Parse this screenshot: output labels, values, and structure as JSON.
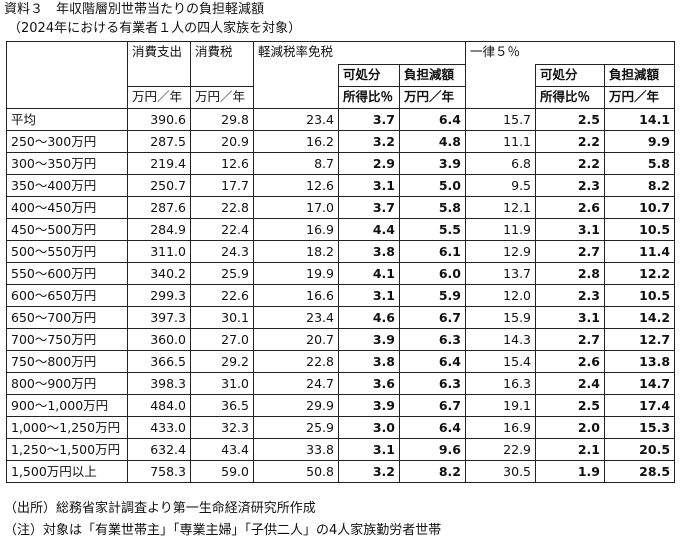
{
  "title": "資料３　年収階層別世帯当たりの負担軽減額",
  "subtitle": "（2024年における有業者１人の四人家族を対象）",
  "headers": {
    "consumption": "消費支出",
    "consumption_tax": "消費税",
    "reduced_group": "軽減税率免税",
    "flat_group": "一律５％",
    "disposable": "可処分",
    "disposable_ratio": "所得比％",
    "burden": "負担減額",
    "burden_unit": "万円／年",
    "unit_man_yen": "万円／年",
    "unit_man_yen2": "万円／年"
  },
  "rows": [
    {
      "label": "平均",
      "c1": "390.6",
      "c2": "29.8",
      "c3": "23.4",
      "c4": "3.7",
      "c5": "6.4",
      "c6": "15.7",
      "c7": "2.5",
      "c8": "14.1"
    },
    {
      "label": "250～300万円",
      "c1": "287.5",
      "c2": "20.9",
      "c3": "16.2",
      "c4": "3.2",
      "c5": "4.8",
      "c6": "11.1",
      "c7": "2.2",
      "c8": "9.9"
    },
    {
      "label": "300～350万円",
      "c1": "219.4",
      "c2": "12.6",
      "c3": "8.7",
      "c4": "2.9",
      "c5": "3.9",
      "c6": "6.8",
      "c7": "2.2",
      "c8": "5.8"
    },
    {
      "label": "350～400万円",
      "c1": "250.7",
      "c2": "17.7",
      "c3": "12.6",
      "c4": "3.1",
      "c5": "5.0",
      "c6": "9.5",
      "c7": "2.3",
      "c8": "8.2"
    },
    {
      "label": "400～450万円",
      "c1": "287.6",
      "c2": "22.8",
      "c3": "17.0",
      "c4": "3.7",
      "c5": "5.8",
      "c6": "12.1",
      "c7": "2.6",
      "c8": "10.7"
    },
    {
      "label": "450～500万円",
      "c1": "284.9",
      "c2": "22.4",
      "c3": "16.9",
      "c4": "4.4",
      "c5": "5.5",
      "c6": "11.9",
      "c7": "3.1",
      "c8": "10.5"
    },
    {
      "label": "500～550万円",
      "c1": "311.0",
      "c2": "24.3",
      "c3": "18.2",
      "c4": "3.8",
      "c5": "6.1",
      "c6": "12.9",
      "c7": "2.7",
      "c8": "11.4"
    },
    {
      "label": "550～600万円",
      "c1": "340.2",
      "c2": "25.9",
      "c3": "19.9",
      "c4": "4.1",
      "c5": "6.0",
      "c6": "13.7",
      "c7": "2.8",
      "c8": "12.2"
    },
    {
      "label": "600～650万円",
      "c1": "299.3",
      "c2": "22.6",
      "c3": "16.6",
      "c4": "3.1",
      "c5": "5.9",
      "c6": "12.0",
      "c7": "2.3",
      "c8": "10.5"
    },
    {
      "label": "650～700万円",
      "c1": "397.3",
      "c2": "30.1",
      "c3": "23.4",
      "c4": "4.6",
      "c5": "6.7",
      "c6": "15.9",
      "c7": "3.1",
      "c8": "14.2"
    },
    {
      "label": "700～750万円",
      "c1": "360.0",
      "c2": "27.0",
      "c3": "20.7",
      "c4": "3.9",
      "c5": "6.3",
      "c6": "14.3",
      "c7": "2.7",
      "c8": "12.7"
    },
    {
      "label": "750～800万円",
      "c1": "366.5",
      "c2": "29.2",
      "c3": "22.8",
      "c4": "3.8",
      "c5": "6.4",
      "c6": "15.4",
      "c7": "2.6",
      "c8": "13.8"
    },
    {
      "label": "800～900万円",
      "c1": "398.3",
      "c2": "31.0",
      "c3": "24.7",
      "c4": "3.6",
      "c5": "6.3",
      "c6": "16.3",
      "c7": "2.4",
      "c8": "14.7"
    },
    {
      "label": "900～1,000万円",
      "c1": "484.0",
      "c2": "36.5",
      "c3": "29.9",
      "c4": "3.9",
      "c5": "6.7",
      "c6": "19.1",
      "c7": "2.5",
      "c8": "17.4"
    },
    {
      "label": "1,000～1,250万円",
      "c1": "433.0",
      "c2": "32.3",
      "c3": "25.9",
      "c4": "3.0",
      "c5": "6.4",
      "c6": "16.9",
      "c7": "2.0",
      "c8": "15.3"
    },
    {
      "label": "1,250～1,500万円",
      "c1": "632.4",
      "c2": "43.4",
      "c3": "33.8",
      "c4": "3.1",
      "c5": "9.6",
      "c6": "22.9",
      "c7": "2.1",
      "c8": "20.5"
    },
    {
      "label": "1,500万円以上",
      "c1": "758.3",
      "c2": "59.0",
      "c3": "50.8",
      "c4": "3.2",
      "c5": "8.2",
      "c6": "30.5",
      "c7": "1.9",
      "c8": "28.5"
    }
  ],
  "source": "（出所）総務省家計調査より第一生命経済研究所作成",
  "note": "（注）対象は「有業世帯主」「専業主婦」「子供二人」の4人家族勤労者世帯"
}
